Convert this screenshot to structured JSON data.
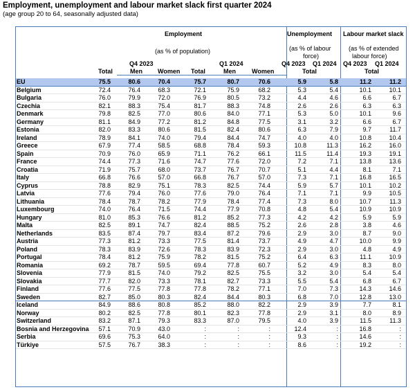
{
  "title": "Employment, unemployment and labour market slack first quarter 2024",
  "subtitle": "(age group 20 to 64, seasonally adjusted data)",
  "headers": {
    "employment": "Employment",
    "employment_sub": "(as % of population)",
    "q4_2023": "Q4 2023",
    "q1_2024": "Q1 2024",
    "total": "Total",
    "men": "Men",
    "women": "Women",
    "unemployment": "Unemployment",
    "unemployment_sub1": "(as % of labour",
    "unemployment_sub2": "force)",
    "slack": "Labour market slack",
    "slack_sub1": "(as % of extended",
    "slack_sub2": "labour force)"
  },
  "rows": [
    {
      "name": "EU",
      "v": [
        "75.5",
        "80.6",
        "70.4",
        "75.7",
        "80.7",
        "70.6",
        "5.9",
        "5.8",
        "11.2",
        "11.2"
      ]
    },
    {
      "name": "Belgium",
      "v": [
        "72.4",
        "76.4",
        "68.3",
        "72.1",
        "75.9",
        "68.2",
        "5.3",
        "5.4",
        "10.1",
        "10.1"
      ]
    },
    {
      "name": "Bulgaria",
      "v": [
        "76.0",
        "79.9",
        "72.0",
        "76.9",
        "80.5",
        "73.2",
        "4.4",
        "4.6",
        "6.6",
        "6.7"
      ]
    },
    {
      "name": "Czechia",
      "v": [
        "82.1",
        "88.3",
        "75.4",
        "81.7",
        "88.3",
        "74.8",
        "2.6",
        "2.6",
        "6.3",
        "6.3"
      ]
    },
    {
      "name": "Denmark",
      "v": [
        "79.8",
        "82.5",
        "77.0",
        "80.6",
        "84.0",
        "77.1",
        "5.3",
        "5.0",
        "10.1",
        "9.6"
      ]
    },
    {
      "name": "Germany",
      "v": [
        "81.1",
        "84.9",
        "77.2",
        "81.2",
        "84.8",
        "77.5",
        "3.1",
        "3.2",
        "6.6",
        "6.7"
      ]
    },
    {
      "name": "Estonia",
      "v": [
        "82.0",
        "83.3",
        "80.6",
        "81.5",
        "82.4",
        "80.6",
        "6.3",
        "7.9",
        "9.7",
        "11.7"
      ]
    },
    {
      "name": "Ireland",
      "v": [
        "78.9",
        "84.1",
        "74.0",
        "79.4",
        "84.4",
        "74.7",
        "4.0",
        "4.0",
        "10.8",
        "10.4"
      ]
    },
    {
      "name": "Greece",
      "v": [
        "67.9",
        "77.4",
        "58.5",
        "68.8",
        "78.4",
        "59.3",
        "10.8",
        "11.3",
        "16.2",
        "16.0"
      ]
    },
    {
      "name": "Spain",
      "v": [
        "70.9",
        "76.0",
        "65.9",
        "71.1",
        "76.2",
        "66.1",
        "11.5",
        "11.4",
        "19.3",
        "19.1"
      ]
    },
    {
      "name": "France",
      "v": [
        "74.4",
        "77.3",
        "71.6",
        "74.7",
        "77.6",
        "72.0",
        "7.2",
        "7.1",
        "13.8",
        "13.6"
      ]
    },
    {
      "name": "Croatia",
      "v": [
        "71.9",
        "75.7",
        "68.0",
        "73.7",
        "76.7",
        "70.7",
        "5.1",
        "4.4",
        "8.1",
        "7.1"
      ]
    },
    {
      "name": "Italy",
      "v": [
        "66.8",
        "76.6",
        "57.0",
        "66.8",
        "76.7",
        "57.0",
        "7.3",
        "7.1",
        "16.8",
        "16.5"
      ]
    },
    {
      "name": "Cyprus",
      "v": [
        "78.8",
        "82.9",
        "75.1",
        "78.3",
        "82.5",
        "74.4",
        "5.9",
        "5.7",
        "10.1",
        "10.2"
      ]
    },
    {
      "name": "Latvia",
      "v": [
        "77.6",
        "79.4",
        "76.0",
        "77.6",
        "79.0",
        "76.4",
        "7.1",
        "7.1",
        "9.9",
        "10.5"
      ]
    },
    {
      "name": "Lithuania",
      "v": [
        "78.4",
        "78.7",
        "78.2",
        "77.9",
        "78.4",
        "77.4",
        "7.3",
        "8.0",
        "10.7",
        "11.3"
      ]
    },
    {
      "name": "Luxembourg",
      "v": [
        "74.0",
        "76.4",
        "71.5",
        "74.4",
        "77.9",
        "70.8",
        "4.8",
        "5.4",
        "10.9",
        "10.9"
      ]
    },
    {
      "name": "Hungary",
      "v": [
        "81.0",
        "85.3",
        "76.6",
        "81.2",
        "85.2",
        "77.3",
        "4.2",
        "4.2",
        "5.9",
        "5.9"
      ]
    },
    {
      "name": "Malta",
      "v": [
        "82.5",
        "89.1",
        "74.7",
        "82.4",
        "88.5",
        "75.2",
        "2.6",
        "2.8",
        "3.8",
        "4.6"
      ]
    },
    {
      "name": "Netherlands",
      "v": [
        "83.5",
        "87.4",
        "79.7",
        "83.4",
        "87.2",
        "79.6",
        "2.9",
        "3.0",
        "8.7",
        "9.0"
      ]
    },
    {
      "name": "Austria",
      "v": [
        "77.3",
        "81.2",
        "73.3",
        "77.5",
        "81.4",
        "73.7",
        "4.9",
        "4.7",
        "10.0",
        "9.9"
      ]
    },
    {
      "name": "Poland",
      "v": [
        "78.3",
        "83.9",
        "72.6",
        "78.3",
        "83.9",
        "72.3",
        "2.9",
        "3.0",
        "4.8",
        "4.9"
      ]
    },
    {
      "name": "Portugal",
      "v": [
        "78.4",
        "81.2",
        "75.9",
        "78.2",
        "81.5",
        "75.2",
        "6.4",
        "6.3",
        "11.1",
        "10.9"
      ]
    },
    {
      "name": "Romania",
      "v": [
        "69.2",
        "78.7",
        "59.5",
        "69.4",
        "77.8",
        "60.7",
        "5.2",
        "4.9",
        "8.3",
        "8.0"
      ]
    },
    {
      "name": "Slovenia",
      "v": [
        "77.9",
        "81.5",
        "74.0",
        "79.2",
        "82.5",
        "75.5",
        "3.2",
        "3.0",
        "5.4",
        "5.4"
      ]
    },
    {
      "name": "Slovakia",
      "v": [
        "77.7",
        "82.0",
        "73.3",
        "78.1",
        "82.7",
        "73.3",
        "5.5",
        "5.4",
        "6.8",
        "6.7"
      ]
    },
    {
      "name": "Finland",
      "v": [
        "77.6",
        "77.5",
        "77.8",
        "77.8",
        "78.2",
        "77.1",
        "7.0",
        "7.3",
        "14.3",
        "14.6"
      ]
    },
    {
      "name": "Sweden",
      "v": [
        "82.7",
        "85.0",
        "80.3",
        "82.4",
        "84.4",
        "80.3",
        "6.8",
        "7.0",
        "12.8",
        "13.0"
      ]
    },
    {
      "name": "Iceland",
      "v": [
        "84.9",
        "88.6",
        "80.8",
        "85.2",
        "88.0",
        "82.2",
        "2.9",
        "3.9",
        "7.7",
        "8.1"
      ]
    },
    {
      "name": "Norway",
      "v": [
        "80.2",
        "82.5",
        "77.8",
        "80.1",
        "82.3",
        "77.8",
        "2.9",
        "3.1",
        "8.0",
        "8.9"
      ]
    },
    {
      "name": "Switzerland",
      "v": [
        "83.2",
        "87.1",
        "79.3",
        "83.3",
        "87.0",
        "79.5",
        "4.0",
        "3.9",
        "11.5",
        "11.3"
      ]
    },
    {
      "name": "Bosnia and Herzegovina",
      "v": [
        "57.1",
        "70.9",
        "43.0",
        ":",
        ":",
        ":",
        "12.4",
        ":",
        "16.8",
        ":"
      ]
    },
    {
      "name": "Serbia",
      "v": [
        "69.6",
        "75.3",
        "64.0",
        ":",
        ":",
        ":",
        "9.3",
        ":",
        "14.6",
        ":"
      ]
    },
    {
      "name": "Türkiye",
      "v": [
        "57.5",
        "76.7",
        "38.3",
        ":",
        ":",
        ":",
        "8.6",
        ":",
        "19.2",
        ":"
      ]
    }
  ]
}
